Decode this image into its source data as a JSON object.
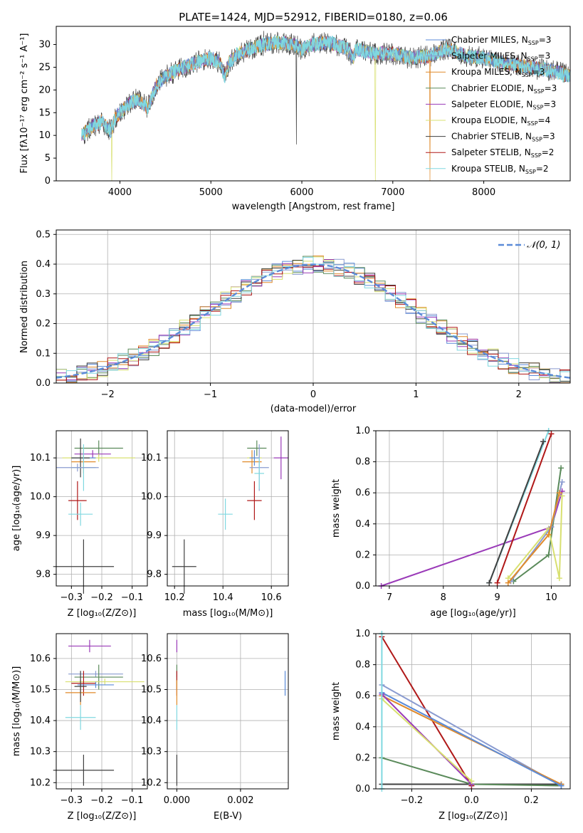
{
  "title": "PLATE=1424, MJD=52912, FIBERID=0180, z=0.06",
  "colors": [
    "#5b8bd8",
    "#8a9bd0",
    "#e08a2a",
    "#5a8a5a",
    "#9a3ab8",
    "#d8e070",
    "#404040",
    "#b01818",
    "#80d8e0"
  ],
  "chart_data": [
    {
      "id": "spectrum",
      "type": "line",
      "xlabel": "wavelength [Angstrom, rest frame]",
      "ylabel": "Flux [fλ10⁻¹⁷ erg cm⁻² s⁻¹ A⁻¹]",
      "xlim": [
        3300,
        8950
      ],
      "ylim": [
        0,
        34
      ],
      "xticks": [
        "4000",
        "5000",
        "6000",
        "7000",
        "8000"
      ],
      "yticks": [
        "0",
        "5",
        "10",
        "15",
        "20",
        "25",
        "30"
      ],
      "legend_position": "upper-right",
      "legend": [
        {
          "name": "Chabrier MILES, N",
          "sub": "SSP",
          "eq": "=3"
        },
        {
          "name": "Salpeter MILES, N",
          "sub": "SSP",
          "eq": "=3"
        },
        {
          "name": "Kroupa MILES, N",
          "sub": "SSP",
          "eq": "=3"
        },
        {
          "name": "Chabrier ELODIE, N",
          "sub": "SSP",
          "eq": "=3"
        },
        {
          "name": "Salpeter ELODIE, N",
          "sub": "SSP",
          "eq": "=3"
        },
        {
          "name": "Kroupa ELODIE, N",
          "sub": "SSP",
          "eq": "=4"
        },
        {
          "name": "Chabrier STELIB, N",
          "sub": "SSP",
          "eq": "=3"
        },
        {
          "name": "Salpeter STELIB, N",
          "sub": "SSP",
          "eq": "=2"
        },
        {
          "name": "Kroupa STELIB, N",
          "sub": "SSP",
          "eq": "=2"
        }
      ],
      "continuum": [
        [
          3580,
          10
        ],
        [
          3700,
          12
        ],
        [
          3800,
          13
        ],
        [
          3900,
          11
        ],
        [
          3950,
          14
        ],
        [
          4000,
          15
        ],
        [
          4100,
          17
        ],
        [
          4200,
          18
        ],
        [
          4300,
          16
        ],
        [
          4400,
          21
        ],
        [
          4500,
          23
        ],
        [
          4700,
          25
        ],
        [
          4900,
          26.5
        ],
        [
          5000,
          27
        ],
        [
          5100,
          26
        ],
        [
          5150,
          23
        ],
        [
          5200,
          26
        ],
        [
          5300,
          28
        ],
        [
          5500,
          29.5
        ],
        [
          5700,
          30.5
        ],
        [
          5900,
          30
        ],
        [
          6000,
          29
        ],
        [
          6100,
          30
        ],
        [
          6300,
          30.5
        ],
        [
          6500,
          29
        ],
        [
          6563,
          27
        ],
        [
          6600,
          29
        ],
        [
          6800,
          28
        ],
        [
          7000,
          28
        ],
        [
          7200,
          27
        ],
        [
          7400,
          27.5
        ],
        [
          7600,
          29
        ],
        [
          7800,
          27.5
        ],
        [
          8000,
          27
        ],
        [
          8200,
          26
        ],
        [
          8500,
          25
        ],
        [
          8800,
          24
        ],
        [
          8950,
          23
        ]
      ]
    },
    {
      "id": "residuals",
      "type": "line",
      "xlabel": "(data-model)/error",
      "ylabel": "Normed distribution",
      "xlim": [
        -2.5,
        2.5
      ],
      "ylim": [
        0,
        0.515
      ],
      "xticks": [
        "−2",
        "−1",
        "0",
        "1",
        "2"
      ],
      "xtick_values": [
        -2,
        -1,
        0,
        1,
        2
      ],
      "yticks": [
        "0.0",
        "0.1",
        "0.2",
        "0.3",
        "0.4",
        "0.5"
      ],
      "ytick_values": [
        0,
        0.1,
        0.2,
        0.3,
        0.4,
        0.5
      ],
      "grid": true,
      "legend_position": "upper-right",
      "legend": "𝒩(0, 1)",
      "gaussian": {
        "mean": 0,
        "sigma": 1
      },
      "bin_width": 0.1
    },
    {
      "id": "age-vs-z",
      "type": "scatter",
      "xlabel": "Z [log₁₀(Z/Z⊙)]",
      "ylabel": "age  [log₁₀(age/yr)]",
      "xlim": [
        -0.35,
        -0.05
      ],
      "ylim": [
        9.77,
        10.17
      ],
      "xticks": [
        "−0.3",
        "−0.2",
        "−0.1"
      ],
      "xtick_values": [
        -0.3,
        -0.2,
        -0.1
      ],
      "yticks": [
        "9.8",
        "9.9",
        "10.0",
        "10.1"
      ],
      "ytick_values": [
        9.8,
        9.9,
        10.0,
        10.1
      ],
      "points": [
        {
          "x": -0.21,
          "y": 10.125,
          "xe": 0.08,
          "ye": 0.02,
          "c": 3
        },
        {
          "x": -0.23,
          "y": 10.11,
          "xe": 0.06,
          "ye": 0.01,
          "c": 4
        },
        {
          "x": -0.21,
          "y": 10.1,
          "xe": 0.12,
          "ye": 0.01,
          "c": 5
        },
        {
          "x": -0.26,
          "y": 10.1,
          "xe": 0.04,
          "ye": 0.015,
          "c": 0
        },
        {
          "x": -0.26,
          "y": 10.09,
          "xe": 0.04,
          "ye": 0.03,
          "c": 2
        },
        {
          "x": -0.27,
          "y": 10.1,
          "xe": 0.03,
          "ye": 0.05,
          "c": 6
        },
        {
          "x": -0.26,
          "y": 10.075,
          "xe": 0.04,
          "ye": 0.06,
          "c": 8
        },
        {
          "x": -0.28,
          "y": 10.075,
          "xe": 0.07,
          "ye": 0.01,
          "c": 1
        },
        {
          "x": -0.28,
          "y": 9.99,
          "xe": 0.03,
          "ye": 0.05,
          "c": 7
        },
        {
          "x": -0.27,
          "y": 9.955,
          "xe": 0.04,
          "ye": 0.03,
          "c": 8
        },
        {
          "x": -0.26,
          "y": 9.82,
          "xe": 0.1,
          "ye": 0.07,
          "c": 6
        }
      ]
    },
    {
      "id": "age-vs-mass",
      "type": "scatter",
      "xlabel": "mass [log₁₀(M/M⊙)]",
      "xlim": [
        10.17,
        10.67
      ],
      "ylim": [
        9.77,
        10.17
      ],
      "xticks": [
        "10.2",
        "10.4",
        "10.6"
      ],
      "xtick_values": [
        10.2,
        10.4,
        10.6
      ],
      "yticks": [
        "9.8",
        "9.9",
        "10.0",
        "10.1"
      ],
      "ytick_values": [
        9.8,
        9.9,
        10.0,
        10.1
      ],
      "points": [
        {
          "x": 10.54,
          "y": 10.125,
          "xe": 0.04,
          "ye": 0.02,
          "c": 3
        },
        {
          "x": 10.64,
          "y": 10.1,
          "xe": 0.03,
          "ye": 0.055,
          "c": 4
        },
        {
          "x": 10.53,
          "y": 10.1,
          "xe": 0.03,
          "ye": 0.01,
          "c": 5
        },
        {
          "x": 10.52,
          "y": 10.09,
          "xe": 0.04,
          "ye": 0.03,
          "c": 2
        },
        {
          "x": 10.53,
          "y": 10.1,
          "xe": 0.02,
          "ye": 0.02,
          "c": 0
        },
        {
          "x": 10.55,
          "y": 10.075,
          "xe": 0.04,
          "ye": 0.06,
          "c": 1
        },
        {
          "x": 10.55,
          "y": 10.06,
          "xe": 0.02,
          "ye": 0.04,
          "c": 8
        },
        {
          "x": 10.53,
          "y": 9.99,
          "xe": 0.03,
          "ye": 0.05,
          "c": 7
        },
        {
          "x": 10.41,
          "y": 9.955,
          "xe": 0.03,
          "ye": 0.04,
          "c": 8
        },
        {
          "x": 10.24,
          "y": 9.82,
          "xe": 0.05,
          "ye": 0.07,
          "c": 6
        }
      ]
    },
    {
      "id": "weight-vs-age",
      "type": "line",
      "ylabel": "mass weight",
      "xlabel": "age  [log₁₀(age/yr)]",
      "xlim": [
        6.75,
        10.35
      ],
      "ylim": [
        0,
        1.0
      ],
      "xticks": [
        "7",
        "8",
        "9",
        "10"
      ],
      "xtick_values": [
        7,
        8,
        9,
        10
      ],
      "yticks": [
        "0.0",
        "0.2",
        "0.4",
        "0.6",
        "0.8",
        "1.0"
      ],
      "ytick_values": [
        0,
        0.2,
        0.4,
        0.6,
        0.8,
        1.0
      ],
      "series": [
        {
          "c": 4,
          "points": [
            [
              6.85,
              0.0
            ],
            [
              10.0,
              0.38
            ],
            [
              10.2,
              0.61
            ]
          ]
        },
        {
          "c": 8,
          "points": [
            [
              8.85,
              0.02
            ],
            [
              9.95,
              1.0
            ]
          ]
        },
        {
          "c": 7,
          "points": [
            [
              9.0,
              0.02
            ],
            [
              10.0,
              0.98
            ]
          ]
        },
        {
          "c": 6,
          "points": [
            [
              8.85,
              0.02
            ],
            [
              9.85,
              0.93
            ]
          ]
        },
        {
          "c": 3,
          "points": [
            [
              9.3,
              0.03
            ],
            [
              9.95,
              0.2
            ],
            [
              10.18,
              0.76
            ]
          ]
        },
        {
          "c": 5,
          "points": [
            [
              9.2,
              0.05
            ],
            [
              9.95,
              0.37
            ],
            [
              10.15,
              0.05
            ],
            [
              10.2,
              0.58
            ]
          ]
        },
        {
          "c": 1,
          "points": [
            [
              9.25,
              0.03
            ],
            [
              10.0,
              0.38
            ],
            [
              10.2,
              0.67
            ]
          ]
        },
        {
          "c": 2,
          "points": [
            [
              9.2,
              0.02
            ],
            [
              9.95,
              0.33
            ],
            [
              10.15,
              0.6
            ]
          ]
        }
      ]
    },
    {
      "id": "mass-vs-z",
      "type": "scatter",
      "ylabel": "mass [log₁₀(M/M⊙)]",
      "xlabel": "Z [log₁₀(Z/Z⊙)]",
      "xlim": [
        -0.35,
        -0.05
      ],
      "ylim": [
        10.18,
        10.68
      ],
      "xticks": [
        "−0.3",
        "−0.2",
        "−0.1"
      ],
      "xtick_values": [
        -0.3,
        -0.2,
        -0.1
      ],
      "yticks": [
        "10.2",
        "10.3",
        "10.4",
        "10.5",
        "10.6"
      ],
      "ytick_values": [
        10.2,
        10.3,
        10.4,
        10.5,
        10.6
      ],
      "points": [
        {
          "x": -0.24,
          "y": 10.64,
          "xe": 0.07,
          "ye": 0.02,
          "c": 4
        },
        {
          "x": -0.22,
          "y": 10.55,
          "xe": 0.09,
          "ye": 0.01,
          "c": 1
        },
        {
          "x": -0.21,
          "y": 10.54,
          "xe": 0.08,
          "ye": 0.04,
          "c": 3
        },
        {
          "x": -0.19,
          "y": 10.525,
          "xe": 0.13,
          "ye": 0.01,
          "c": 5
        },
        {
          "x": -0.26,
          "y": 10.52,
          "xe": 0.04,
          "ye": 0.04,
          "c": 7
        },
        {
          "x": -0.22,
          "y": 10.515,
          "xe": 0.06,
          "ye": 0.01,
          "c": 0
        },
        {
          "x": -0.27,
          "y": 10.49,
          "xe": 0.05,
          "ye": 0.04,
          "c": 2
        },
        {
          "x": -0.27,
          "y": 10.51,
          "xe": 0.02,
          "ye": 0.05,
          "c": 6
        },
        {
          "x": -0.27,
          "y": 10.41,
          "xe": 0.05,
          "ye": 0.04,
          "c": 8
        },
        {
          "x": -0.26,
          "y": 10.24,
          "xe": 0.1,
          "ye": 0.05,
          "c": 6
        }
      ]
    },
    {
      "id": "mass-vs-ebv",
      "type": "scatter",
      "xlabel": "E(B-V)",
      "xlim": [
        -0.0003,
        0.0035
      ],
      "ylim": [
        10.18,
        10.68
      ],
      "xticks": [
        "0.000",
        "0.002"
      ],
      "xtick_values": [
        0,
        0.002
      ],
      "yticks": [
        "10.2",
        "10.3",
        "10.4",
        "10.5",
        "10.6"
      ],
      "ytick_values": [
        10.2,
        10.3,
        10.4,
        10.5,
        10.6
      ],
      "points": [
        {
          "x": 0.0,
          "y": 10.64,
          "xe": 0,
          "ye": 0.02,
          "c": 4
        },
        {
          "x": 0.0,
          "y": 10.55,
          "xe": 0,
          "ye": 0.01,
          "c": 1
        },
        {
          "x": 0.0,
          "y": 10.54,
          "xe": 0,
          "ye": 0.04,
          "c": 3
        },
        {
          "x": 0.0,
          "y": 10.525,
          "xe": 0,
          "ye": 0.01,
          "c": 5
        },
        {
          "x": 0.0,
          "y": 10.52,
          "xe": 0,
          "ye": 0.04,
          "c": 7
        },
        {
          "x": 0.0,
          "y": 10.49,
          "xe": 0,
          "ye": 0.04,
          "c": 2
        },
        {
          "x": 0.0,
          "y": 10.41,
          "xe": 0,
          "ye": 0.04,
          "c": 8
        },
        {
          "x": 0.0,
          "y": 10.24,
          "xe": 0,
          "ye": 0.05,
          "c": 6
        },
        {
          "x": 0.0034,
          "y": 10.52,
          "xe": 0,
          "ye": 0.04,
          "c": 0
        }
      ]
    },
    {
      "id": "weight-vs-z",
      "type": "line",
      "ylabel": "mass weight",
      "xlabel": "Z [log₁₀(Z/Z⊙)]",
      "xlim": [
        -0.32,
        0.33
      ],
      "ylim": [
        0,
        1.0
      ],
      "xticks": [
        "−0.2",
        "0.0",
        "0.2"
      ],
      "xtick_values": [
        -0.2,
        0.0,
        0.2
      ],
      "yticks": [
        "0.0",
        "0.2",
        "0.4",
        "0.6",
        "0.8",
        "1.0"
      ],
      "ytick_values": [
        0,
        0.2,
        0.4,
        0.6,
        0.8,
        1.0
      ],
      "series": [
        {
          "c": 7,
          "points": [
            [
              -0.3,
              0.98
            ],
            [
              0.0,
              0.02
            ]
          ]
        },
        {
          "c": 6,
          "points": [
            [
              -0.3,
              0.03
            ],
            [
              0.3,
              0.03
            ]
          ]
        },
        {
          "c": 3,
          "points": [
            [
              -0.3,
              0.2
            ],
            [
              0.0,
              0.03
            ],
            [
              0.3,
              0.02
            ]
          ]
        },
        {
          "c": 1,
          "points": [
            [
              -0.3,
              0.67
            ],
            [
              0.3,
              0.02
            ]
          ]
        },
        {
          "c": 2,
          "points": [
            [
              -0.3,
              0.6
            ],
            [
              0.3,
              0.03
            ]
          ]
        },
        {
          "c": 0,
          "points": [
            [
              -0.3,
              0.62
            ],
            [
              0.3,
              0.02
            ]
          ]
        },
        {
          "c": 4,
          "points": [
            [
              -0.3,
              0.61
            ],
            [
              0.0,
              0.03
            ]
          ]
        },
        {
          "c": 5,
          "points": [
            [
              -0.3,
              0.58
            ],
            [
              0.0,
              0.05
            ]
          ]
        },
        {
          "c": 8,
          "points": [
            [
              -0.3,
              0.0
            ],
            [
              -0.3,
              1.0
            ]
          ]
        }
      ]
    }
  ]
}
